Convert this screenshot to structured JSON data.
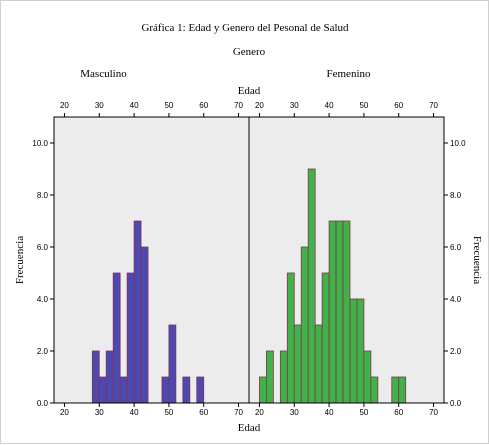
{
  "chart_data": {
    "type": "bar",
    "title": "Gráfica 1: Edad y Genero del Pesonal de Salud",
    "facet_title": "Genero",
    "xlabel": "Edad",
    "ylabel": "Frecuencia",
    "xlim": [
      17,
      73
    ],
    "ylim": [
      0,
      11
    ],
    "x_ticks": [
      "20",
      "30",
      "40",
      "50",
      "60",
      "70"
    ],
    "x_tick_values": [
      20,
      30,
      40,
      50,
      60,
      70
    ],
    "y_ticks": [
      "0.0",
      "2.0",
      "4.0",
      "6.0",
      "8.0",
      "10.0"
    ],
    "y_tick_values": [
      0,
      2,
      4,
      6,
      8,
      10
    ],
    "bin_width": 2,
    "grid": false,
    "background_color": "#ececec",
    "panels": [
      {
        "name": "Masculino",
        "color": "#4a4ab0",
        "edge_color": "#8a3050",
        "bins": [
          28,
          30,
          32,
          34,
          36,
          38,
          40,
          42,
          48,
          50,
          54,
          58
        ],
        "values": [
          2,
          1,
          2,
          5,
          1,
          5,
          7,
          6,
          1,
          3,
          1,
          1
        ]
      },
      {
        "name": "Femenino",
        "color": "#3fb24a",
        "edge_color": "#8a3050",
        "bins": [
          20,
          22,
          26,
          28,
          30,
          32,
          34,
          36,
          38,
          40,
          42,
          44,
          46,
          48,
          50,
          52,
          58,
          60
        ],
        "values": [
          1,
          2,
          2,
          5,
          3,
          6,
          9,
          3,
          5,
          7,
          7,
          7,
          4,
          4,
          2,
          1,
          1,
          1
        ]
      }
    ]
  }
}
